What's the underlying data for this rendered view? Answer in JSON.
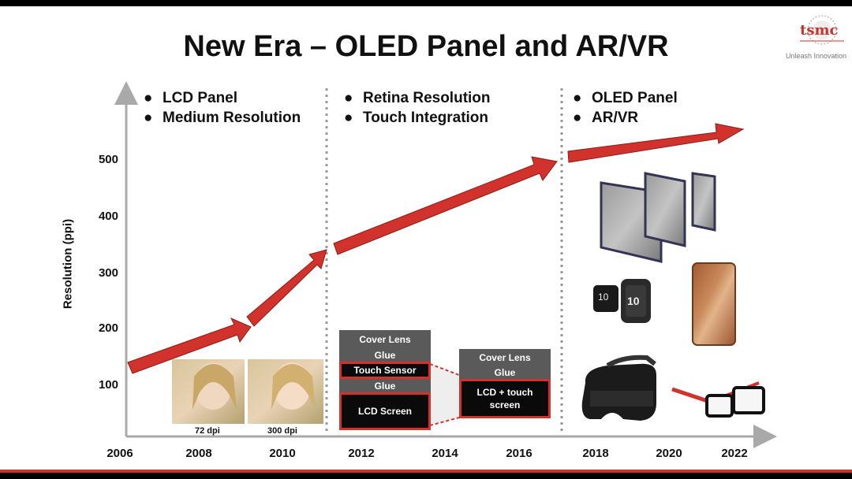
{
  "title": "New Era – OLED Panel and AR/VR",
  "logo": {
    "text": "tsmc",
    "tagline": "Unleash Innovation"
  },
  "eras": [
    {
      "bullets": [
        "LCD Panel",
        "Medium Resolution"
      ]
    },
    {
      "bullets": [
        "Retina Resolution",
        "Touch  Integration"
      ]
    },
    {
      "bullets": [
        "OLED  Panel",
        "AR/VR"
      ]
    }
  ],
  "axis": {
    "y_label": "Resolution (ppi)",
    "y_ticks": [
      "500",
      "400",
      "300",
      "200",
      "100"
    ],
    "x_ticks": [
      "2006",
      "2008",
      "2010",
      "2012",
      "2014",
      "2016",
      "2018",
      "2020",
      "2022"
    ]
  },
  "photos": {
    "left_label": "72 dpi",
    "right_label": "300 dpi"
  },
  "stack_left": {
    "cover": "Cover Lens",
    "glue1": "Glue",
    "touch": "Touch Sensor",
    "glue2": "Glue",
    "lcd": "LCD Screen"
  },
  "stack_right": {
    "cover": "Cover Lens",
    "glue": "Glue",
    "combined": "LCD + touch screen"
  },
  "watch_text": {
    "left": "10",
    "right": "10"
  },
  "colors": {
    "accent": "#d1322b",
    "dark": "#111111"
  }
}
